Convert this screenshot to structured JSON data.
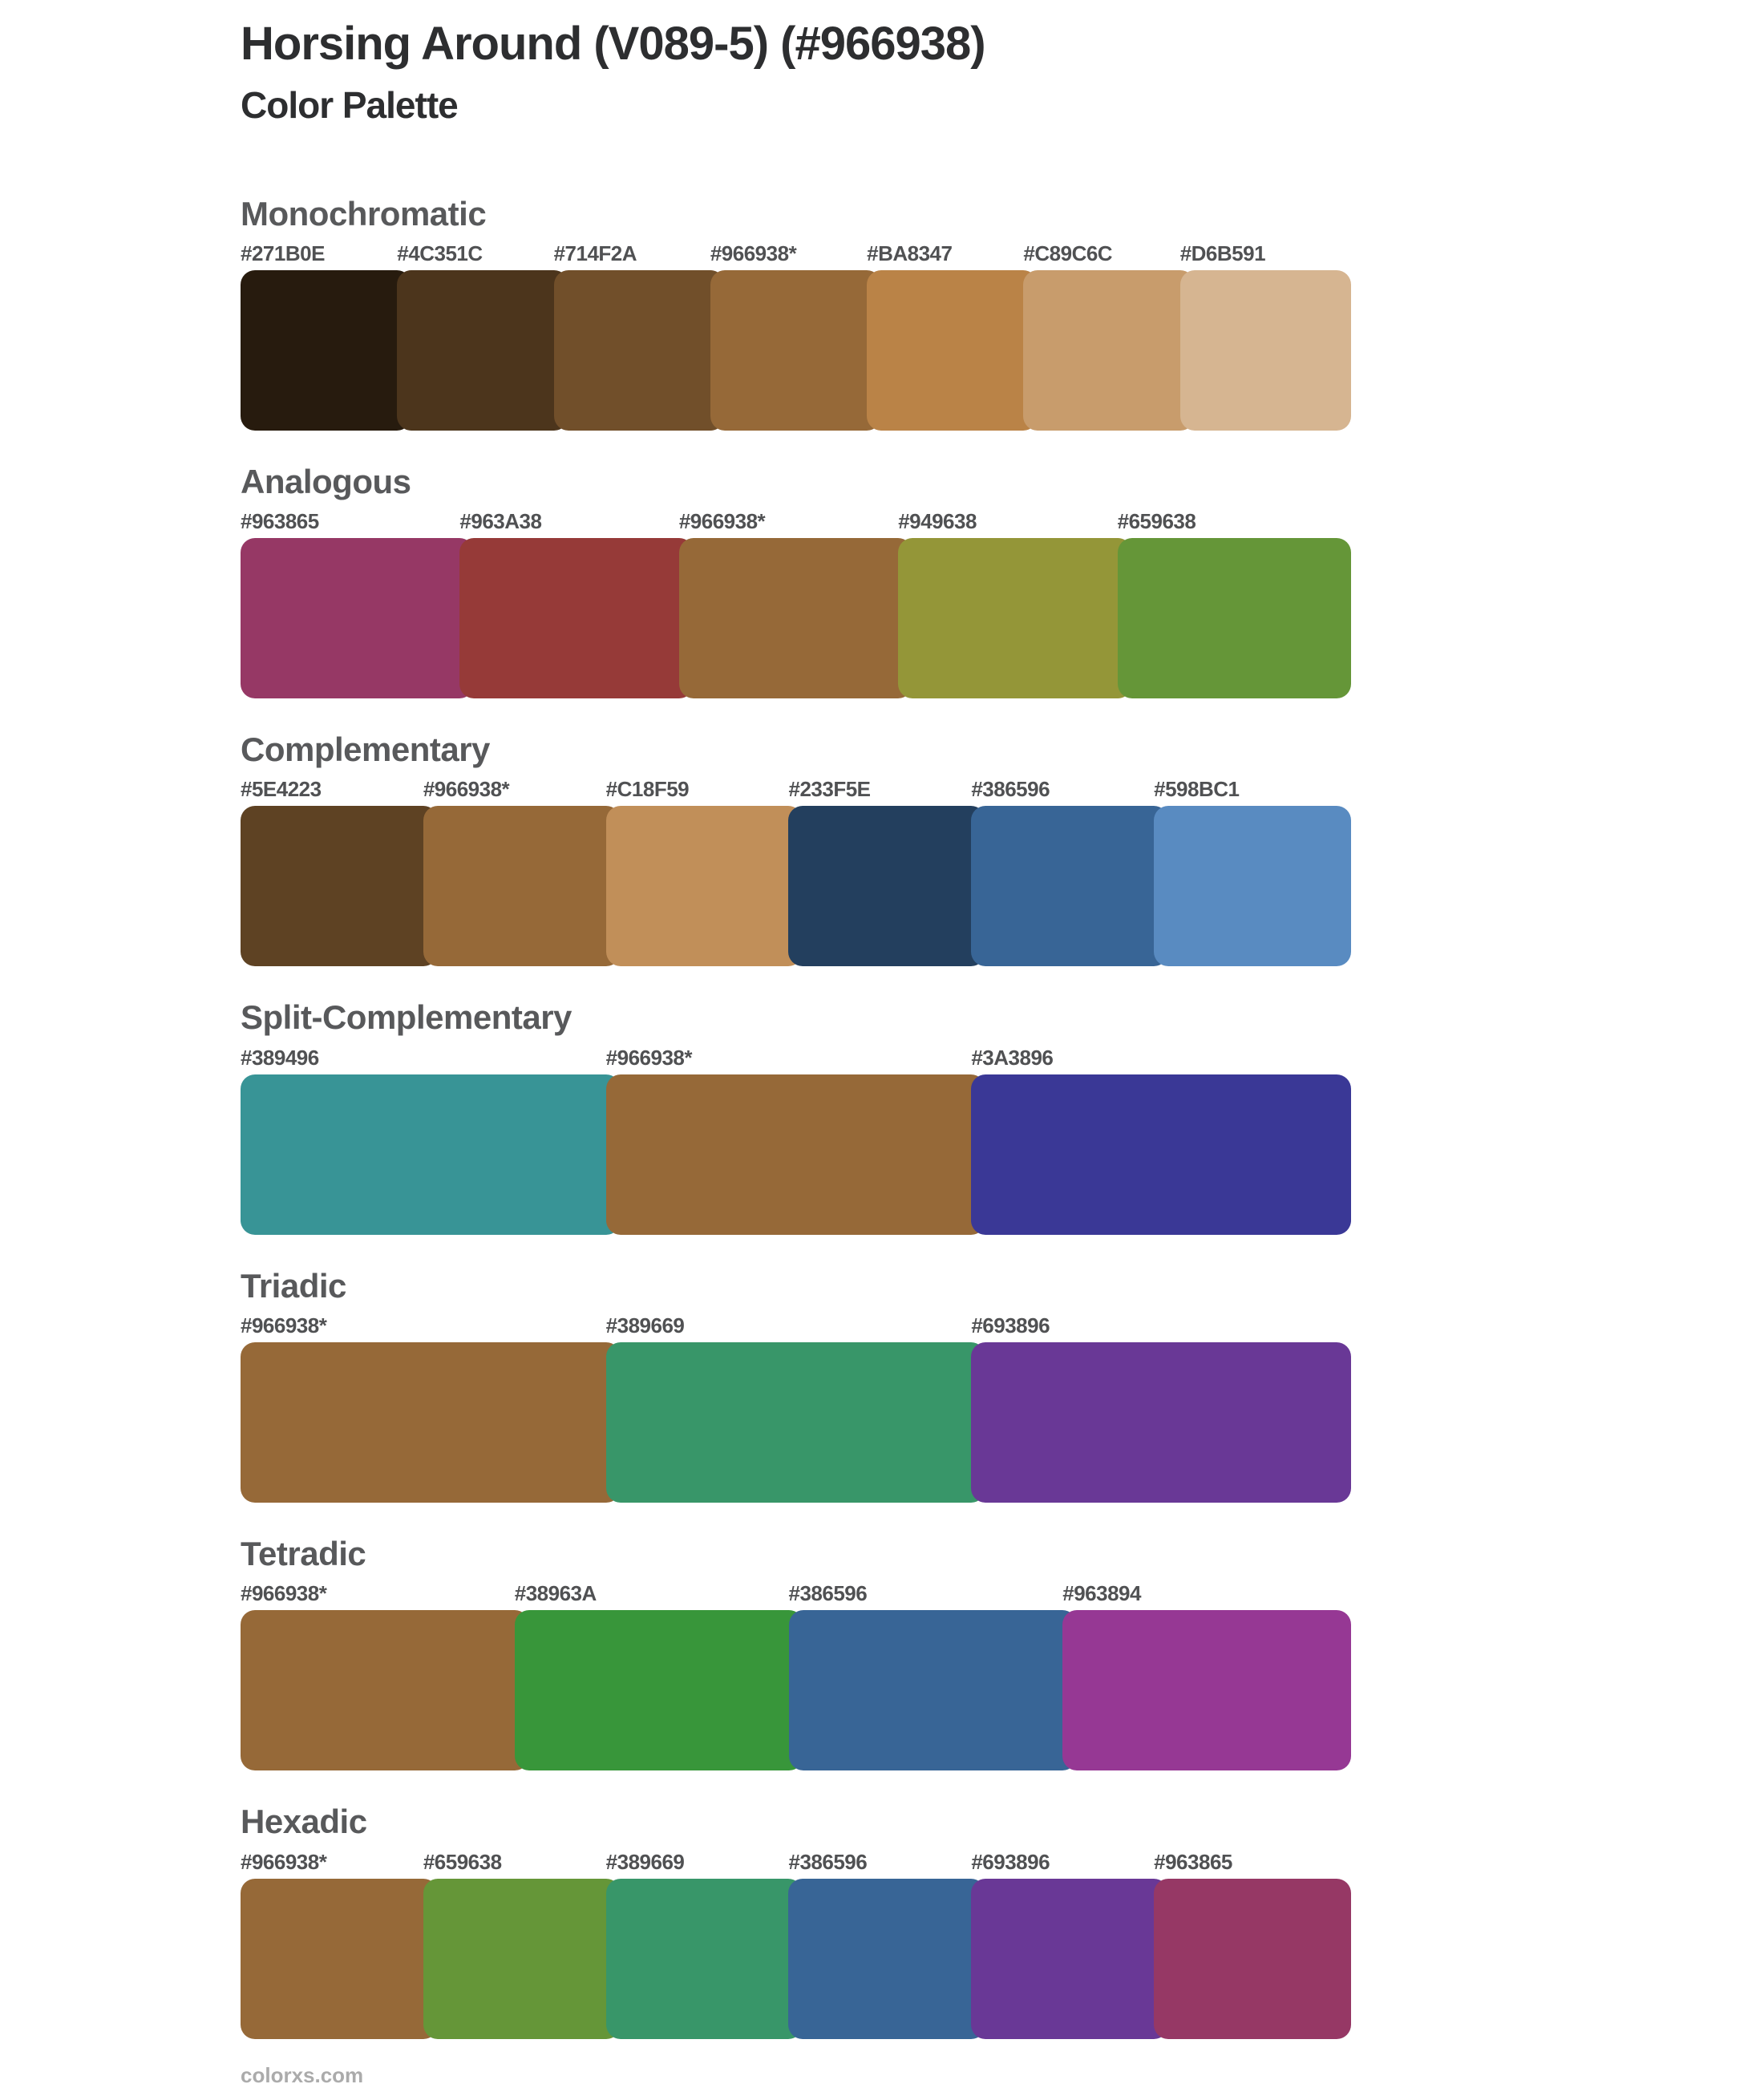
{
  "page": {
    "title": "Horsing Around (V089-5) (#966938)",
    "subtitle": "Color Palette",
    "footer": "colorxs.com",
    "base_color": "#966938"
  },
  "sections": [
    {
      "name": "Monochromatic",
      "swatches": [
        {
          "label": "#271B0E",
          "color": "#271B0E"
        },
        {
          "label": "#4C351C",
          "color": "#4C351C"
        },
        {
          "label": "#714F2A",
          "color": "#714F2A"
        },
        {
          "label": "#966938*",
          "color": "#966938"
        },
        {
          "label": "#BA8347",
          "color": "#BA8347"
        },
        {
          "label": "#C89C6C",
          "color": "#C89C6C"
        },
        {
          "label": "#D6B591",
          "color": "#D6B591"
        }
      ]
    },
    {
      "name": "Analogous",
      "swatches": [
        {
          "label": "#963865",
          "color": "#963865"
        },
        {
          "label": "#963A38",
          "color": "#963A38"
        },
        {
          "label": "#966938*",
          "color": "#966938"
        },
        {
          "label": "#949638",
          "color": "#949638"
        },
        {
          "label": "#659638",
          "color": "#659638"
        }
      ]
    },
    {
      "name": "Complementary",
      "swatches": [
        {
          "label": "#5E4223",
          "color": "#5E4223"
        },
        {
          "label": "#966938*",
          "color": "#966938"
        },
        {
          "label": "#C18F59",
          "color": "#C18F59"
        },
        {
          "label": "#233F5E",
          "color": "#233F5E"
        },
        {
          "label": "#386596",
          "color": "#386596"
        },
        {
          "label": "#598BC1",
          "color": "#598BC1"
        }
      ]
    },
    {
      "name": "Split-Complementary",
      "swatches": [
        {
          "label": "#389496",
          "color": "#389496"
        },
        {
          "label": "#966938*",
          "color": "#966938"
        },
        {
          "label": "#3A3896",
          "color": "#3A3896"
        }
      ]
    },
    {
      "name": "Triadic",
      "swatches": [
        {
          "label": "#966938*",
          "color": "#966938"
        },
        {
          "label": "#389669",
          "color": "#389669"
        },
        {
          "label": "#693896",
          "color": "#693896"
        }
      ]
    },
    {
      "name": "Tetradic",
      "swatches": [
        {
          "label": "#966938*",
          "color": "#966938"
        },
        {
          "label": "#38963A",
          "color": "#38963A"
        },
        {
          "label": "#386596",
          "color": "#386596"
        },
        {
          "label": "#963894",
          "color": "#963894"
        }
      ]
    },
    {
      "name": "Hexadic",
      "swatches": [
        {
          "label": "#966938*",
          "color": "#966938"
        },
        {
          "label": "#659638",
          "color": "#659638"
        },
        {
          "label": "#389669",
          "color": "#389669"
        },
        {
          "label": "#386596",
          "color": "#386596"
        },
        {
          "label": "#693896",
          "color": "#693896"
        },
        {
          "label": "#963865",
          "color": "#963865"
        }
      ]
    }
  ]
}
